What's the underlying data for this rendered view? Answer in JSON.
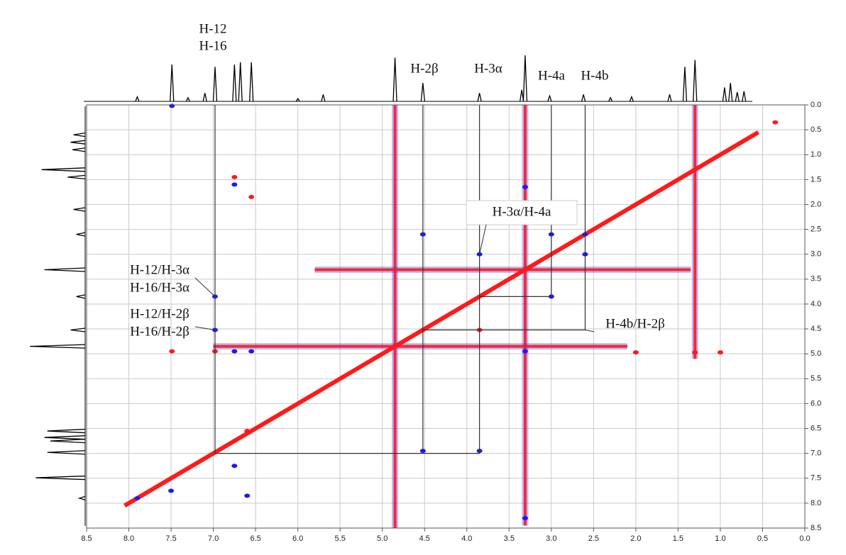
{
  "chart_data": {
    "type": "nmr2d",
    "xlim": [
      8.5,
      0
    ],
    "ylim": [
      0,
      8.5
    ],
    "xticks": [
      8.5,
      {
        "value": 8,
        "label": "8.0"
      },
      7.5,
      {
        "value": 7,
        "label": "7.0"
      },
      6.5,
      {
        "value": 6,
        "label": "6.0"
      },
      5.5,
      {
        "value": 5,
        "label": "5.0"
      },
      4.5,
      {
        "value": 4,
        "label": "4.0"
      },
      3.5,
      {
        "value": 3,
        "label": "3.0"
      },
      2.5,
      {
        "value": 2,
        "label": "2.0"
      },
      1.5,
      {
        "value": 1,
        "label": "1.0"
      },
      0.5,
      {
        "value": 0,
        "label": "0.0"
      }
    ],
    "yticks": [
      {
        "value": 0,
        "label": "0.0"
      },
      0.5,
      {
        "value": 1,
        "label": "1.0"
      },
      1.5,
      {
        "value": 2,
        "label": "2.0"
      },
      2.5,
      {
        "value": 3,
        "label": "3.0"
      },
      3.5,
      {
        "value": 4,
        "label": "4.0"
      },
      4.5,
      {
        "value": 5,
        "label": "5.0"
      },
      5.5,
      {
        "value": 6,
        "label": "6.0"
      },
      6.5,
      {
        "value": 7,
        "label": "7.0"
      },
      7.5,
      {
        "value": 8,
        "label": "8.0"
      },
      8.5
    ],
    "grid": true,
    "diagonal": {
      "color": "#ff1a1a",
      "x": [
        8.05,
        0.55
      ],
      "y": [
        8.05,
        0.55
      ]
    },
    "streaks": [
      {
        "color": "#ff1a1a",
        "x": [
          4.85,
          4.85
        ],
        "y": [
          0,
          8.5
        ]
      },
      {
        "color": "#ff1a1a",
        "x": [
          3.31,
          3.31
        ],
        "y": [
          0,
          8.45
        ]
      },
      {
        "color": "#ff1a1a",
        "x": [
          7.0,
          2.1
        ],
        "y": [
          4.85,
          4.85
        ]
      },
      {
        "color": "#ff1a1a",
        "x": [
          5.8,
          1.35
        ],
        "y": [
          3.31,
          3.31
        ]
      },
      {
        "color": "#ff1a1a",
        "x": [
          1.3,
          1.3
        ],
        "y": [
          0,
          5.1
        ]
      }
    ],
    "positive_peaks": {
      "color": "#ff1a1a",
      "x": [
        6.75,
        6.55,
        7.49,
        6.98,
        1.3,
        1.0,
        2.0,
        0.35,
        4.52,
        3.85,
        6.6,
        6.75
      ],
      "y": [
        1.45,
        1.85,
        4.95,
        4.95,
        4.97,
        4.97,
        4.97,
        0.35,
        4.52,
        4.52,
        6.55,
        6.75
      ]
    },
    "negative_peaks": {
      "color": "#1a1aff",
      "x": [
        7.49,
        6.98,
        6.98,
        4.52,
        3.85,
        4.52,
        3.85,
        3.0,
        3.0,
        2.6,
        2.6,
        3.31,
        3.31,
        6.75,
        6.6,
        6.75,
        6.55,
        7.5,
        7.9,
        3.31,
        6.75
      ],
      "y": [
        0.02,
        3.85,
        4.52,
        6.95,
        6.95,
        2.6,
        3.0,
        2.6,
        3.85,
        3.0,
        2.6,
        1.65,
        8.3,
        7.25,
        7.85,
        4.95,
        4.95,
        7.75,
        7.9,
        4.95,
        1.6
      ]
    },
    "top_spectrum": {
      "color": "#000000",
      "x": [
        7.9,
        7.49,
        7.3,
        7.1,
        6.98,
        6.75,
        6.68,
        6.55,
        6.0,
        5.7,
        4.85,
        4.52,
        3.85,
        3.35,
        3.31,
        3.02,
        2.62,
        2.3,
        2.05,
        1.6,
        1.42,
        1.3,
        0.95,
        0.88,
        0.8,
        0.72
      ],
      "heights": [
        10,
        80,
        8,
        18,
        75,
        80,
        85,
        85,
        6,
        15,
        95,
        40,
        18,
        25,
        100,
        12,
        15,
        8,
        10,
        15,
        75,
        90,
        30,
        40,
        20,
        22
      ]
    },
    "left_spectrum": {
      "color": "#000000",
      "y": [
        0.6,
        0.75,
        0.9,
        1.3,
        1.45,
        2.1,
        2.6,
        3.31,
        3.85,
        4.52,
        4.85,
        6.55,
        6.68,
        6.75,
        6.98,
        7.49,
        7.9
      ],
      "heights": [
        20,
        25,
        22,
        75,
        30,
        20,
        15,
        70,
        15,
        25,
        95,
        65,
        70,
        60,
        65,
        85,
        10
      ]
    },
    "connectors": [
      {
        "x": [
          6.98,
          6.98,
          3.85,
          3.85
        ],
        "y": [
          0,
          7.0,
          7.0,
          0
        ]
      },
      {
        "x": [
          4.52,
          4.52
        ],
        "y": [
          0,
          6.95
        ]
      },
      {
        "x": [
          3.0,
          3.0,
          3.85
        ],
        "y": [
          0,
          3.85,
          3.85
        ]
      },
      {
        "x": [
          2.6,
          2.6,
          4.52
        ],
        "y": [
          0,
          4.52,
          4.52
        ]
      }
    ],
    "shift_labels": [
      {
        "text": "H-12",
        "x": 6.98
      },
      {
        "text": "H-16",
        "x": 6.98
      },
      {
        "text": "H-2β",
        "x": 4.52
      },
      {
        "text": "H-3α",
        "x": 3.85
      },
      {
        "text": "H-4a",
        "x": 3.0
      },
      {
        "text": "H-4b",
        "x": 2.6
      }
    ],
    "cross_peak_labels": [
      {
        "text": "H-3α/H-4a",
        "x": 3.85,
        "y": 3.0
      },
      {
        "text": "H-12/H-3α",
        "x": 6.98,
        "y": 3.85
      },
      {
        "text": "H-16/H-3α",
        "x": 6.98,
        "y": 3.85
      },
      {
        "text": "H-12/H-2β",
        "x": 6.98,
        "y": 4.52
      },
      {
        "text": "H-16/H-2β",
        "x": 6.98,
        "y": 4.52
      },
      {
        "text": "H-4b/H-2β",
        "x": 2.6,
        "y": 4.52
      }
    ]
  }
}
